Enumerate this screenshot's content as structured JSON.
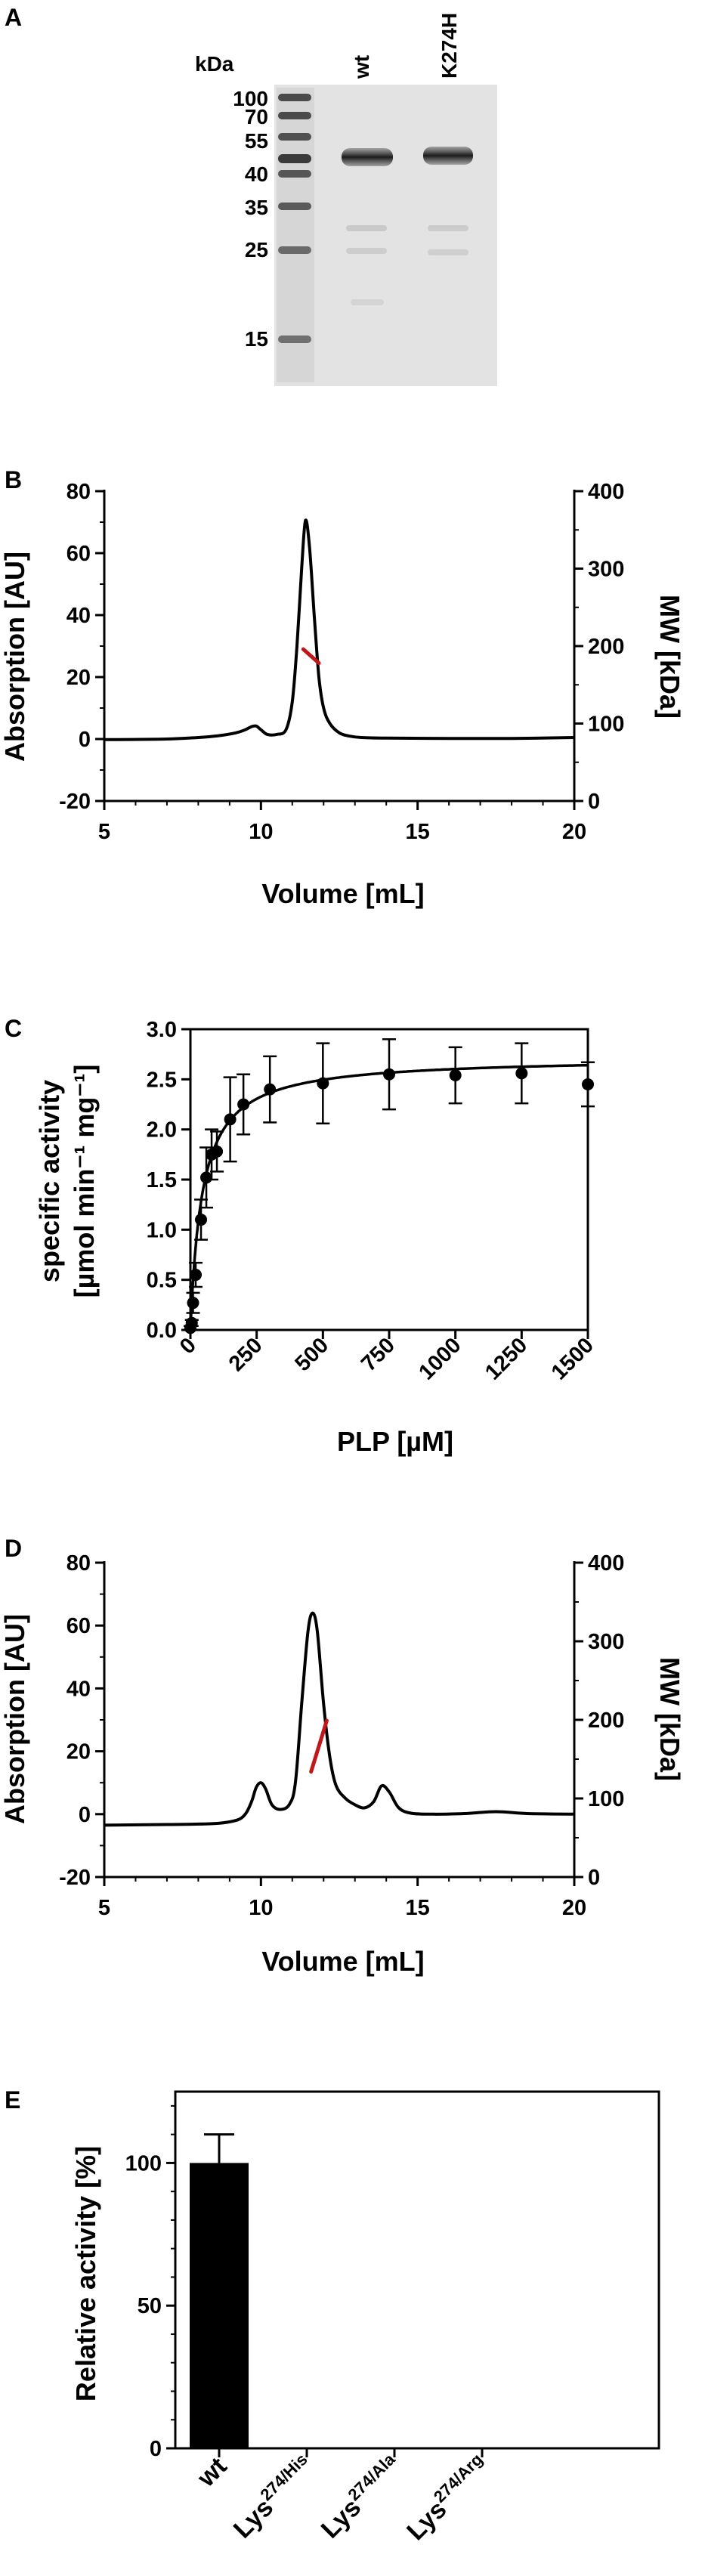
{
  "panels": [
    "A",
    "B",
    "C",
    "D",
    "E"
  ],
  "gel": {
    "unit_label": "kDa",
    "lane_labels": [
      "wt",
      "K274H"
    ],
    "markers": [
      {
        "label": "100",
        "kda": 100
      },
      {
        "label": "70",
        "kda": 70
      },
      {
        "label": "55",
        "kda": 55
      },
      {
        "label": "40",
        "kda": 40
      },
      {
        "label": "35",
        "kda": 35
      },
      {
        "label": "25",
        "kda": 25
      },
      {
        "label": "15",
        "kda": 15
      }
    ]
  },
  "chart_data": [
    {
      "panel": "B",
      "type": "line",
      "xlabel": "Volume [mL]",
      "ylabel": "Absorption [AU]",
      "y2label": "MW [kDa]",
      "xlim": [
        5,
        20
      ],
      "ylim": [
        -20,
        80
      ],
      "y2lim": [
        0,
        400
      ],
      "x_ticks": [
        "5",
        "10",
        "15",
        "20"
      ],
      "y_ticks": [
        "-20",
        "0",
        "20",
        "40",
        "60",
        "80"
      ],
      "y2_ticks": [
        "0",
        "100",
        "200",
        "300",
        "400"
      ],
      "series": [
        {
          "x": [
            5,
            7,
            8,
            8.6,
            9.2,
            9.5,
            9.7,
            9.85,
            10,
            10.2,
            10.5,
            10.8,
            11,
            11.15,
            11.3,
            11.42,
            11.55,
            11.7,
            11.85,
            12,
            12.2,
            12.5,
            12.8,
            13.2,
            14,
            16,
            18,
            20
          ],
          "y": [
            -0.2,
            0,
            0.5,
            1,
            2,
            3,
            4,
            4.2,
            3,
            1.5,
            1.5,
            3,
            12,
            30,
            55,
            70.5,
            62,
            40,
            20,
            10,
            5,
            2,
            1,
            0.5,
            0.3,
            0.2,
            0.2,
            0.5
          ]
        }
      ],
      "mw_segment": {
        "x": [
          11.35,
          11.85
        ],
        "y": [
          196,
          178
        ]
      },
      "colors": {
        "line": "#000000",
        "mw": "#c0181a"
      }
    },
    {
      "panel": "C",
      "type": "scatter",
      "xlabel": "PLP [µM]",
      "ylabel_line1": "specific activity",
      "ylabel_line2": "[µmol min⁻¹ mg⁻¹]",
      "xlim": [
        0,
        1500
      ],
      "ylim": [
        0,
        3.0
      ],
      "x_ticks": [
        "0",
        "250",
        "500",
        "750",
        "1000",
        "1250",
        "1500"
      ],
      "y_ticks": [
        "0.0",
        "0.5",
        "1.0",
        "1.5",
        "2.0",
        "2.5",
        "3.0"
      ],
      "x": [
        0,
        5,
        10,
        20,
        40,
        60,
        80,
        100,
        150,
        200,
        300,
        500,
        750,
        1000,
        1250,
        1500
      ],
      "y": [
        0.02,
        0.07,
        0.27,
        0.55,
        1.1,
        1.52,
        1.75,
        1.78,
        2.1,
        2.25,
        2.4,
        2.46,
        2.55,
        2.54,
        2.56,
        2.45
      ],
      "err": [
        0.02,
        0.03,
        0.1,
        0.12,
        0.2,
        0.3,
        0.25,
        0.2,
        0.42,
        0.3,
        0.33,
        0.4,
        0.35,
        0.28,
        0.3,
        0.22
      ],
      "fit": {
        "vmax": 2.72,
        "km": 45
      },
      "colors": {
        "points": "#000000"
      }
    },
    {
      "panel": "D",
      "type": "line",
      "xlabel": "Volume [mL]",
      "ylabel": "Absorption [AU]",
      "y2label": "MW [kDa]",
      "xlim": [
        5,
        20
      ],
      "ylim": [
        -20,
        80
      ],
      "y2lim": [
        0,
        400
      ],
      "x_ticks": [
        "5",
        "10",
        "15",
        "20"
      ],
      "y_ticks": [
        "-20",
        "0",
        "20",
        "40",
        "60",
        "80"
      ],
      "y2_ticks": [
        "0",
        "100",
        "200",
        "300",
        "400"
      ],
      "series": [
        {
          "x": [
            5,
            7,
            8.5,
            9.2,
            9.5,
            9.7,
            9.85,
            10,
            10.15,
            10.35,
            10.6,
            10.9,
            11.1,
            11.3,
            11.5,
            11.65,
            11.8,
            12,
            12.2,
            12.4,
            12.7,
            13,
            13.3,
            13.6,
            13.85,
            14.1,
            14.4,
            14.8,
            15.5,
            16.5,
            17.5,
            18.5,
            20
          ],
          "y": [
            -3.5,
            -3.3,
            -3,
            -2,
            0,
            4,
            8.5,
            10,
            8,
            3,
            1.5,
            3,
            10,
            35,
            58,
            64,
            58,
            35,
            18,
            9,
            5,
            3,
            2,
            4,
            9,
            7,
            2,
            0.3,
            0,
            0.2,
            0.8,
            0.2,
            0
          ]
        }
      ],
      "mw_segment": {
        "x": [
          11.6,
          12.1
        ],
        "y": [
          134,
          199
        ]
      },
      "colors": {
        "line": "#000000",
        "mw": "#c0181a"
      }
    },
    {
      "panel": "E",
      "type": "bar",
      "ylabel": "Relative activity [%]",
      "ylim": [
        0,
        125
      ],
      "y_ticks": [
        "0",
        "50",
        "100"
      ],
      "categories": [
        {
          "main": "wt",
          "sup": ""
        },
        {
          "main": "Lys",
          "sup": "274/His"
        },
        {
          "main": "Lys",
          "sup": "274/Ala"
        },
        {
          "main": "Lys",
          "sup": "274/Arg"
        }
      ],
      "values": [
        100,
        0,
        0,
        0
      ],
      "err": [
        10,
        0,
        0,
        0
      ],
      "colors": {
        "bar": "#000000"
      }
    }
  ]
}
